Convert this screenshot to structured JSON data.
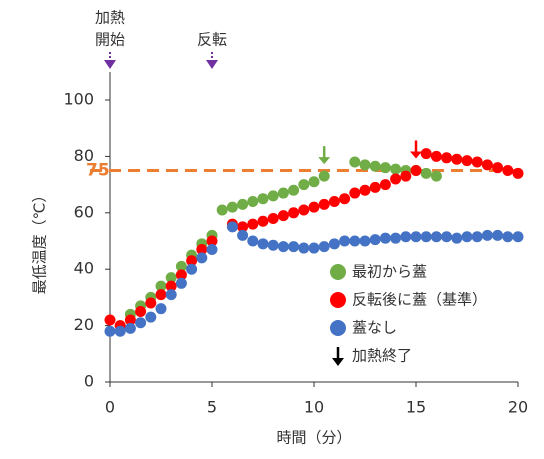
{
  "chart_data": {
    "type": "scatter",
    "xlabel": "時間（分）",
    "ylabel": "最低温度（℃）",
    "xlim": [
      0,
      20
    ],
    "xticks": [
      0,
      5,
      10,
      15,
      20
    ],
    "ylim": [
      0,
      100
    ],
    "yticks": [
      0,
      20,
      40,
      60,
      80,
      100
    ],
    "reference_line": {
      "value": 75,
      "label": "75",
      "color": "#ed7d31"
    },
    "annotations": [
      {
        "lines": [
          "加熱",
          "開始"
        ],
        "x": 0
      },
      {
        "lines": [
          "反転"
        ],
        "x": 5
      }
    ],
    "end_marker": {
      "label": "加熱終了"
    },
    "series": [
      {
        "name": "最初から蓋",
        "color": "#70ad47",
        "end_x": 10.5,
        "x": [
          0.5,
          1,
          1.5,
          2,
          2.5,
          3,
          3.5,
          4,
          4.5,
          5,
          5.5,
          6,
          6.5,
          7,
          7.5,
          8,
          8.5,
          9,
          9.5,
          10,
          10.5,
          12,
          12.5,
          13,
          13.5,
          14,
          14.5,
          15,
          15.5,
          16
        ],
        "values": [
          20,
          24,
          27,
          30,
          34,
          37,
          41,
          45,
          49,
          52,
          61,
          62,
          63,
          64,
          65,
          66,
          67,
          68,
          70,
          71,
          73,
          78,
          77,
          76.5,
          76,
          75.5,
          75,
          75,
          74,
          73
        ]
      },
      {
        "name": "反転後に蓋（基準）",
        "color": "#ff0000",
        "end_x": 15,
        "x": [
          0,
          0.5,
          1,
          1.5,
          2,
          2.5,
          3,
          3.5,
          4,
          4.5,
          5,
          6,
          6.5,
          7,
          7.5,
          8,
          8.5,
          9,
          9.5,
          10,
          10.5,
          11,
          11.5,
          12,
          12.5,
          13,
          13.5,
          14,
          14.5,
          15,
          15.5,
          16,
          16.5,
          17,
          17.5,
          18,
          18.5,
          19,
          19.5,
          20
        ],
        "values": [
          22,
          20,
          22,
          25,
          28,
          31,
          34,
          38,
          43,
          47,
          50,
          56,
          55,
          56,
          57,
          58,
          59,
          60,
          61,
          62,
          63,
          64,
          65,
          67,
          68,
          69,
          70,
          72,
          73,
          75,
          81,
          80,
          79.5,
          79,
          78.5,
          78,
          77,
          76,
          75,
          74
        ]
      },
      {
        "name": "蓋なし",
        "color": "#4472c4",
        "x": [
          0,
          0.5,
          1,
          1.5,
          2,
          2.5,
          3,
          3.5,
          4,
          4.5,
          5,
          6,
          6.5,
          7,
          7.5,
          8,
          8.5,
          9,
          9.5,
          10,
          10.5,
          11,
          11.5,
          12,
          12.5,
          13,
          13.5,
          14,
          14.5,
          15,
          15.5,
          16,
          16.5,
          17,
          17.5,
          18,
          18.5,
          19,
          19.5,
          20
        ],
        "values": [
          18,
          18,
          19,
          21,
          23,
          26,
          31,
          35,
          40,
          44,
          47,
          55,
          52,
          50,
          49,
          48.5,
          48,
          48,
          47.5,
          47.5,
          48,
          49,
          50,
          50,
          50,
          50.5,
          51,
          51,
          51.5,
          51.5,
          51.5,
          51.5,
          51.5,
          51,
          51.5,
          51.5,
          52,
          52,
          51.5,
          51.5
        ]
      }
    ]
  }
}
